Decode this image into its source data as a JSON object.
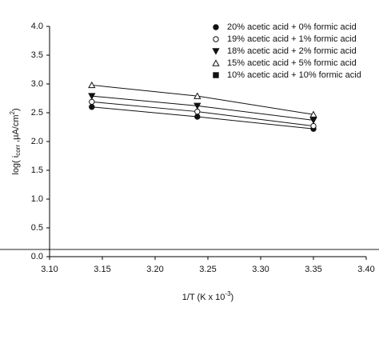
{
  "chart_data": {
    "type": "scatter",
    "ylabel": [
      "log( i",
      "corr",
      " ,µA/cm",
      "2",
      ")"
    ],
    "xlabel": [
      "1/T (K x 10",
      "-3",
      ")"
    ],
    "x": [
      3.14,
      3.24,
      3.35
    ],
    "xlim": [
      3.1,
      3.4
    ],
    "xticks": [
      {
        "value": 3.1,
        "label": "3.10"
      },
      3.15,
      {
        "value": 3.2,
        "label": "3.20"
      },
      3.25,
      {
        "value": 3.3,
        "label": "3.30"
      },
      3.35,
      {
        "value": 3.4,
        "label": "3.40"
      }
    ],
    "ylim": [
      0,
      4
    ],
    "yticks": [
      {
        "value": 0,
        "label": "0.0"
      },
      0.5,
      {
        "value": 1,
        "label": "1.0"
      },
      1.5,
      {
        "value": 2,
        "label": "2.0"
      },
      2.5,
      {
        "value": 3,
        "label": "3.0"
      },
      3.5,
      {
        "value": 4,
        "label": "4.0"
      }
    ],
    "legend_position": "upper right",
    "series": [
      {
        "name": "20% acetic acid + 0% formic acid",
        "color": "#111111",
        "marker": "circle-filled",
        "values": [
          2.6,
          2.43,
          2.22
        ]
      },
      {
        "name": "19% acetic acid + 1% formic acid",
        "color": "#111111",
        "marker": "circle-open",
        "values": [
          2.69,
          2.52,
          2.27
        ]
      },
      {
        "name": "18% acetic acid + 2% formic acid",
        "color": "#111111",
        "marker": "triangle-down-filled",
        "values": [
          2.79,
          2.62,
          2.37
        ]
      },
      {
        "name": "15% acetic acid + 5% formic acid",
        "color": "#111111",
        "marker": "triangle-up-open",
        "values": [
          2.98,
          2.79,
          2.47
        ]
      },
      {
        "name": "10% acetic acid + 10% formic acid",
        "color": "#111111",
        "marker": "square-filled",
        "values": [
          null,
          null,
          null
        ]
      }
    ]
  }
}
